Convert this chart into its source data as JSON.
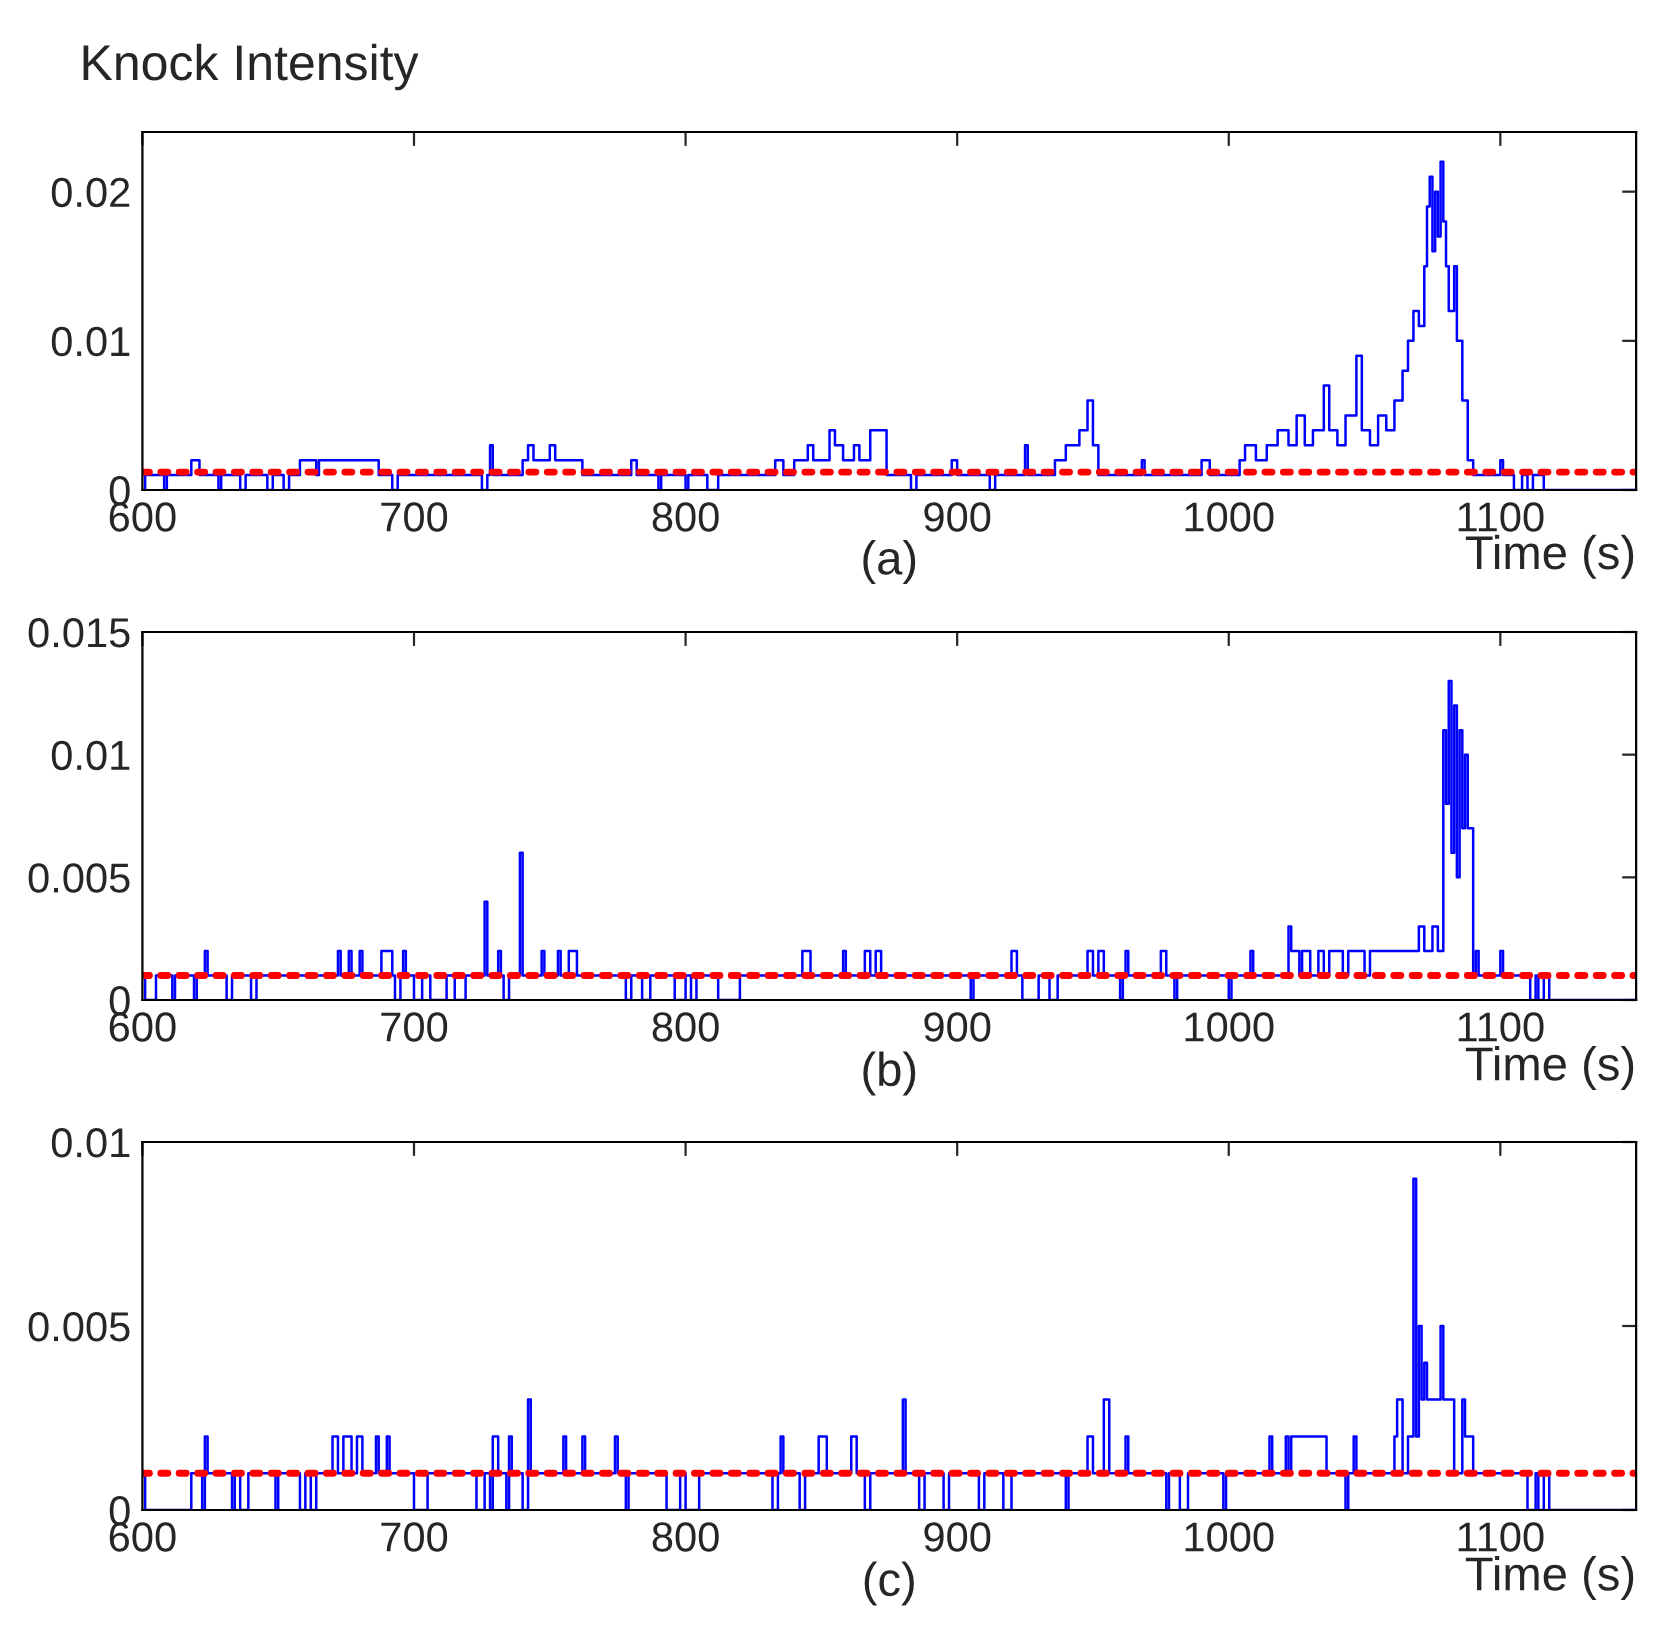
{
  "chart_data": [
    {
      "type": "step",
      "title": "Knock Intensity",
      "xlabel": "Time (s)",
      "annotations": [
        "(a)"
      ],
      "xlim": [
        600,
        1150
      ],
      "xticks": [
        600,
        700,
        800,
        900,
        1000,
        1100
      ],
      "ylim": [
        0,
        0.024
      ],
      "yticks": [
        0,
        0.01,
        0.02
      ],
      "grid": false,
      "legend": false,
      "ref_lines": [
        {
          "axis": "y",
          "value": 0.0012,
          "color": "#ff0000",
          "line_style": "dotted"
        }
      ],
      "series": [
        {
          "color": "#0000ff",
          "x": [
            600,
            601,
            608,
            609,
            618,
            621,
            628,
            629,
            636,
            638,
            646,
            648,
            652,
            654,
            658,
            664,
            665,
            687,
            692,
            694,
            725,
            727,
            728,
            729,
            740,
            742,
            744,
            750,
            752,
            762,
            780,
            782,
            790,
            791,
            800,
            801,
            808,
            812,
            833,
            836,
            840,
            845,
            847,
            853,
            855,
            858,
            862,
            864,
            868,
            874,
            883,
            885,
            898,
            900,
            912,
            914,
            925,
            926,
            936,
            940,
            945,
            948,
            950,
            952,
            968,
            969,
            990,
            993,
            1004,
            1006,
            1010,
            1014,
            1018,
            1022,
            1025,
            1028,
            1031,
            1035,
            1037,
            1040,
            1043,
            1047,
            1049,
            1052,
            1055,
            1058,
            1061,
            1064,
            1066,
            1068,
            1070,
            1072,
            1073,
            1074,
            1075,
            1076,
            1077,
            1078,
            1079,
            1080,
            1081,
            1083,
            1084,
            1086,
            1088,
            1090,
            1100,
            1101,
            1105,
            1108,
            1110,
            1112,
            1116,
            1150
          ],
          "values": [
            0,
            0.001,
            0,
            0.001,
            0.002,
            0.001,
            0,
            0.001,
            0,
            0.001,
            0,
            0.001,
            0,
            0.001,
            0.002,
            0.001,
            0.002,
            0.001,
            0,
            0.001,
            0,
            0.001,
            0.003,
            0.001,
            0.002,
            0.003,
            0.002,
            0.003,
            0.002,
            0.001,
            0.002,
            0.001,
            0,
            0.001,
            0,
            0.001,
            0,
            0.001,
            0.002,
            0.001,
            0.002,
            0.003,
            0.002,
            0.004,
            0.003,
            0.002,
            0.003,
            0.002,
            0.004,
            0.001,
            0,
            0.001,
            0.002,
            0.001,
            0,
            0.001,
            0.003,
            0.001,
            0.002,
            0.003,
            0.004,
            0.006,
            0.003,
            0.001,
            0.002,
            0.001,
            0.002,
            0.001,
            0.002,
            0.003,
            0.002,
            0.003,
            0.004,
            0.003,
            0.005,
            0.003,
            0.004,
            0.007,
            0.004,
            0.003,
            0.005,
            0.009,
            0.004,
            0.003,
            0.005,
            0.004,
            0.006,
            0.008,
            0.01,
            0.012,
            0.011,
            0.015,
            0.019,
            0.021,
            0.016,
            0.02,
            0.017,
            0.022,
            0.018,
            0.015,
            0.012,
            0.015,
            0.01,
            0.006,
            0.002,
            0.001,
            0.002,
            0.001,
            0,
            0.001,
            0,
            0.001,
            0,
            0
          ]
        }
      ]
    },
    {
      "type": "step",
      "xlabel": "Time (s)",
      "annotations": [
        "(b)"
      ],
      "xlim": [
        600,
        1150
      ],
      "xticks": [
        600,
        700,
        800,
        900,
        1000,
        1100
      ],
      "ylim": [
        0,
        0.015
      ],
      "yticks": [
        0,
        0.005,
        0.01,
        0.015
      ],
      "grid": false,
      "legend": false,
      "ref_lines": [
        {
          "axis": "y",
          "value": 0.001,
          "color": "#ff0000",
          "line_style": "dotted"
        }
      ],
      "series": [
        {
          "color": "#0000ff",
          "x": [
            600,
            601,
            605,
            611,
            612,
            619,
            620,
            623,
            624,
            631,
            633,
            640,
            642,
            672,
            673,
            676,
            677,
            680,
            681,
            688,
            692,
            693,
            695,
            696,
            697,
            700,
            703,
            706,
            712,
            715,
            719,
            726,
            727,
            731,
            732,
            733,
            735,
            739,
            740,
            747,
            748,
            753,
            754,
            757,
            760,
            778,
            780,
            784,
            787,
            796,
            800,
            802,
            804,
            812,
            820,
            843,
            846,
            858,
            859,
            866,
            868,
            870,
            872,
            905,
            906,
            920,
            922,
            924,
            930,
            934,
            937,
            948,
            950,
            952,
            954,
            960,
            961,
            962,
            963,
            975,
            977,
            980,
            981,
            1000,
            1001,
            1008,
            1009,
            1022,
            1023,
            1026,
            1027,
            1030,
            1033,
            1035,
            1037,
            1042,
            1044,
            1050,
            1052,
            1070,
            1072,
            1075,
            1077,
            1079,
            1080,
            1081,
            1082,
            1083,
            1084,
            1085,
            1086,
            1087,
            1088,
            1090,
            1091,
            1092,
            1100,
            1101,
            1111,
            1113,
            1114,
            1116,
            1118,
            1150
          ],
          "values": [
            0.001,
            0,
            0.001,
            0,
            0.001,
            0,
            0.001,
            0.002,
            0.001,
            0,
            0.001,
            0,
            0.001,
            0.002,
            0.001,
            0.002,
            0.001,
            0.002,
            0.001,
            0.002,
            0.001,
            0,
            0.001,
            0.002,
            0.001,
            0,
            0.001,
            0,
            0.001,
            0,
            0.001,
            0.004,
            0.001,
            0.002,
            0.001,
            0,
            0.001,
            0.006,
            0.001,
            0.002,
            0.001,
            0.002,
            0.001,
            0.002,
            0.001,
            0,
            0.001,
            0,
            0.001,
            0,
            0.001,
            0,
            0.001,
            0,
            0.001,
            0.002,
            0.001,
            0.002,
            0.001,
            0.002,
            0.001,
            0.002,
            0.001,
            0,
            0.001,
            0.002,
            0.001,
            0,
            0.001,
            0,
            0.001,
            0.002,
            0.001,
            0.002,
            0.001,
            0,
            0.001,
            0.002,
            0.001,
            0.002,
            0.001,
            0,
            0.001,
            0,
            0.001,
            0.002,
            0.001,
            0.003,
            0.002,
            0.001,
            0.002,
            0.001,
            0.002,
            0.001,
            0.002,
            0.001,
            0.002,
            0.001,
            0.002,
            0.003,
            0.002,
            0.003,
            0.002,
            0.011,
            0.008,
            0.013,
            0.006,
            0.012,
            0.005,
            0.011,
            0.007,
            0.01,
            0.007,
            0.001,
            0.002,
            0.001,
            0.002,
            0.001,
            0,
            0.001,
            0,
            0.001,
            0,
            0
          ]
        }
      ]
    },
    {
      "type": "step",
      "xlabel": "Time (s)",
      "annotations": [
        "(c)"
      ],
      "xlim": [
        600,
        1150
      ],
      "xticks": [
        600,
        700,
        800,
        900,
        1000,
        1100
      ],
      "ylim": [
        0,
        0.01
      ],
      "yticks": [
        0,
        0.005,
        0.01
      ],
      "grid": false,
      "legend": false,
      "ref_lines": [
        {
          "axis": "y",
          "value": 0.001,
          "color": "#ff0000",
          "line_style": "dotted"
        }
      ],
      "series": [
        {
          "color": "#0000ff",
          "x": [
            600,
            601,
            618,
            622,
            623,
            624,
            633,
            634,
            636,
            639,
            649,
            650,
            658,
            660,
            662,
            664,
            670,
            672,
            674,
            677,
            679,
            681,
            686,
            687,
            690,
            691,
            700,
            705,
            723,
            726,
            728,
            729,
            731,
            734,
            735,
            736,
            740,
            742,
            743,
            755,
            756,
            762,
            763,
            774,
            775,
            778,
            779,
            793,
            798,
            800,
            805,
            832,
            834,
            835,
            836,
            842,
            844,
            849,
            852,
            861,
            863,
            866,
            868,
            880,
            881,
            886,
            888,
            895,
            897,
            908,
            910,
            917,
            920,
            940,
            941,
            948,
            950,
            954,
            956,
            962,
            963,
            977,
            978,
            982,
            985,
            998,
            999,
            1015,
            1016,
            1021,
            1022,
            1023,
            1036,
            1043,
            1044,
            1046,
            1047,
            1061,
            1062,
            1064,
            1066,
            1068,
            1069,
            1070,
            1071,
            1072,
            1073,
            1078,
            1079,
            1083,
            1086,
            1087,
            1090,
            1110,
            1113,
            1114,
            1116,
            1118,
            1150
          ],
          "values": [
            0.001,
            0,
            0.001,
            0,
            0.002,
            0.001,
            0,
            0.001,
            0,
            0.001,
            0,
            0.001,
            0,
            0.001,
            0,
            0.001,
            0.002,
            0.001,
            0.002,
            0.001,
            0.002,
            0.001,
            0.002,
            0.001,
            0.002,
            0.001,
            0,
            0.001,
            0,
            0.001,
            0,
            0.002,
            0.001,
            0,
            0.002,
            0.001,
            0,
            0.003,
            0.001,
            0.002,
            0.001,
            0.002,
            0.001,
            0.002,
            0.001,
            0,
            0.001,
            0,
            0.001,
            0,
            0.001,
            0,
            0.001,
            0.002,
            0.001,
            0,
            0.001,
            0.002,
            0.001,
            0.002,
            0.001,
            0,
            0.001,
            0.003,
            0.001,
            0,
            0.001,
            0,
            0.001,
            0,
            0.001,
            0,
            0.001,
            0,
            0.001,
            0.002,
            0.001,
            0.003,
            0.001,
            0.002,
            0.001,
            0,
            0.001,
            0,
            0.001,
            0,
            0.001,
            0.002,
            0.001,
            0.002,
            0.001,
            0.002,
            0.001,
            0,
            0.001,
            0.002,
            0.001,
            0.002,
            0.003,
            0.001,
            0.002,
            0.009,
            0.002,
            0.005,
            0.003,
            0.004,
            0.003,
            0.005,
            0.003,
            0.001,
            0.003,
            0.002,
            0.001,
            0,
            0.001,
            0,
            0.001,
            0,
            0
          ]
        }
      ]
    }
  ]
}
